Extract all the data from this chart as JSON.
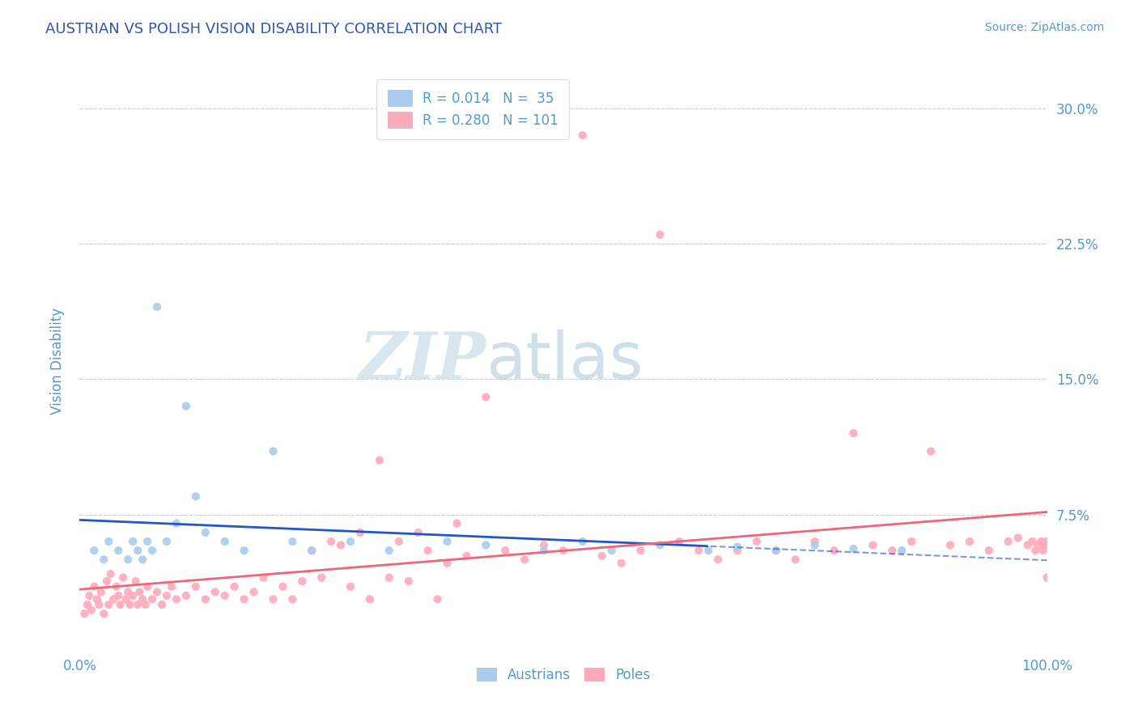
{
  "title": "AUSTRIAN VS POLISH VISION DISABILITY CORRELATION CHART",
  "source": "Source: ZipAtlas.com",
  "ylabel": "Vision Disability",
  "xlim": [
    0.0,
    1.0
  ],
  "ylim": [
    0.0,
    0.32
  ],
  "yticks": [
    0.0,
    0.075,
    0.15,
    0.225,
    0.3
  ],
  "xtick_labels": [
    "0.0%",
    "100.0%"
  ],
  "ytick_labels_right": [
    "7.5%",
    "15.0%",
    "22.5%",
    "30.0%"
  ],
  "background_color": "#ffffff",
  "grid_color": "#cccccc",
  "title_color": "#3355aa",
  "axis_color": "#5599cc",
  "legend_R1": "R = 0.014",
  "legend_N1": "N =  35",
  "legend_R2": "R = 0.280",
  "legend_N2": "N = 101",
  "austrians_color": "#aaccee",
  "poles_color": "#ffaabb",
  "trend_austrians_color": "#2255cc",
  "trend_poles_color": "#ee6677",
  "watermark_zip": "ZIP",
  "watermark_atlas": "atlas",
  "legend_bottom_labels": [
    "Austrians",
    "Poles"
  ]
}
